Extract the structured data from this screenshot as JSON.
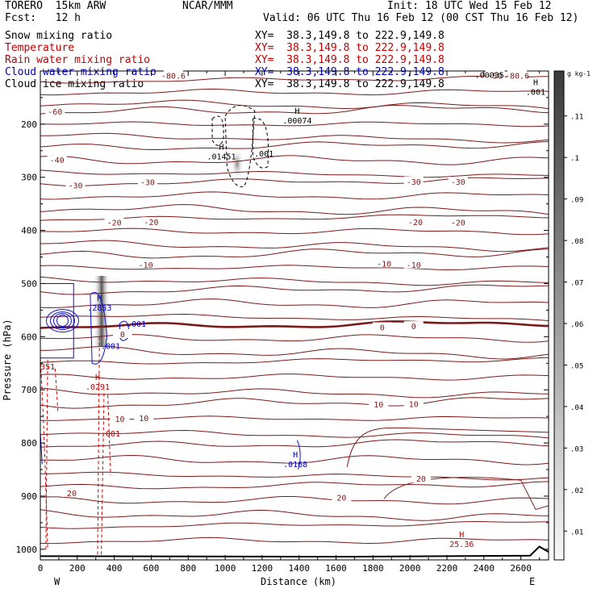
{
  "header": {
    "model": "TORERO  15km ARW",
    "org": "NCAR/MMM",
    "init": "Init: 18 UTC Wed 15 Feb 12",
    "fcst": "Fcst:   12 h",
    "valid": "Valid: 06 UTC Thu 16 Feb 12 (00 CST Thu 16 Feb 12)"
  },
  "fields": [
    {
      "label": "Snow mixing ratio",
      "xs": "XY=  38.3,149.8 to 222.9,149.8",
      "color": "#000000"
    },
    {
      "label": "Temperature",
      "xs": "XY=  38.3,149.8 to 222.9,149.8",
      "color": "#c00000"
    },
    {
      "label": "Rain water mixing ratio",
      "xs": "XY=  38.3,149.8 to 222.9,149.8",
      "color": "#c00000"
    },
    {
      "label": "Cloud water mixing ratio",
      "xs": "XY=  38.3,149.8 to 222.9,149.8",
      "color": "#0000c8"
    },
    {
      "label": "Cloud ice mixing ratio",
      "xs": "XY=  38.3,149.8 to 222.9,149.8",
      "color": "#000000"
    }
  ],
  "chart_data": {
    "type": "cross-section",
    "xlabel": "Distance (km)",
    "ylabel": "Pressure (hPa)",
    "xlim": [
      0,
      2750
    ],
    "ylim": [
      1020,
      100
    ],
    "x_ticks": [
      0,
      200,
      400,
      600,
      800,
      1000,
      1200,
      1400,
      1600,
      1800,
      2000,
      2200,
      2400,
      2600
    ],
    "y_ticks": [
      200,
      300,
      400,
      500,
      600,
      700,
      800,
      900,
      1000
    ],
    "end_labels": {
      "left": "W",
      "right": "E"
    },
    "colorbar": {
      "unit": "g kg-1",
      "ticks": [
        ".01",
        ".02",
        ".03",
        ".04",
        ".05",
        ".06",
        ".07",
        ".08",
        ".09",
        ".1",
        ".11"
      ]
    },
    "temperature_contours": [
      -60,
      -50,
      -40,
      -30,
      -20,
      -10,
      0,
      10,
      20
    ],
    "temperature_labels": [
      {
        "text": "-80.6",
        "x": 720,
        "p": 108
      },
      {
        "text": "-80.6",
        "x": 2580,
        "p": 108
      },
      {
        "text": "-60",
        "x": 80,
        "p": 176
      },
      {
        "text": "-50",
        "x": 2460,
        "p": 108
      },
      {
        "text": "-40",
        "x": 90,
        "p": 267
      },
      {
        "text": "-30",
        "x": 190,
        "p": 315
      },
      {
        "text": "-30",
        "x": 580,
        "p": 309
      },
      {
        "text": "-30",
        "x": 2020,
        "p": 308
      },
      {
        "text": "-30",
        "x": 2260,
        "p": 308
      },
      {
        "text": "-20",
        "x": 400,
        "p": 385
      },
      {
        "text": "-20",
        "x": 600,
        "p": 384
      },
      {
        "text": "-20",
        "x": 2030,
        "p": 384
      },
      {
        "text": "-20",
        "x": 2260,
        "p": 385
      },
      {
        "text": "-10",
        "x": 570,
        "p": 464
      },
      {
        "text": "-10",
        "x": 1860,
        "p": 462
      },
      {
        "text": "-10",
        "x": 2020,
        "p": 464
      },
      {
        "text": "0",
        "x": 445,
        "p": 595
      },
      {
        "text": "0",
        "x": 1850,
        "p": 582
      },
      {
        "text": "0",
        "x": 2020,
        "p": 580
      },
      {
        "text": "10",
        "x": 430,
        "p": 754
      },
      {
        "text": "10",
        "x": 560,
        "p": 753
      },
      {
        "text": "10",
        "x": 1830,
        "p": 727
      },
      {
        "text": "10",
        "x": 2020,
        "p": 726
      },
      {
        "text": "20",
        "x": 170,
        "p": 894
      },
      {
        "text": "20",
        "x": 1630,
        "p": 902
      },
      {
        "text": "20",
        "x": 2060,
        "p": 867
      }
    ],
    "max_min_labels": [
      {
        "mark": "H",
        "text": ".00074",
        "x": 1390,
        "p": 196,
        "color": "#000000"
      },
      {
        "mark": "H",
        "text": ".01451",
        "x": 980,
        "p": 263,
        "color": "#000000"
      },
      {
        "mark": "",
        "text": ".001",
        "x": 1210,
        "p": 258,
        "color": "#000000"
      },
      {
        "mark": "H",
        "text": ".001",
        "x": 2680,
        "p": 142,
        "color": "#000000"
      },
      {
        "mark": "",
        "text": ".00035",
        "x": 2430,
        "p": 110,
        "color": "#000000"
      },
      {
        "mark": "H",
        "text": ".2853",
        "x": 320,
        "p": 548,
        "color": "#0000c8"
      },
      {
        "mark": "",
        "text": ".001",
        "x": 520,
        "p": 578,
        "color": "#0000c8"
      },
      {
        "mark": "",
        "text": ".001",
        "x": 380,
        "p": 620,
        "color": "#0000c8"
      },
      {
        "mark": "H",
        "text": ".0291",
        "x": 310,
        "p": 697,
        "color": "#c00000"
      },
      {
        "mark": "",
        "text": ".001",
        "x": 380,
        "p": 785,
        "color": "#c00000"
      },
      {
        "mark": "",
        "text": "351",
        "x": 40,
        "p": 659,
        "color": "#c00000"
      },
      {
        "mark": "H",
        "text": ".0168",
        "x": 1380,
        "p": 842,
        "color": "#0000c8"
      },
      {
        "mark": "H",
        "text": "25.36",
        "x": 2280,
        "p": 993,
        "color": "#c00000"
      }
    ]
  }
}
